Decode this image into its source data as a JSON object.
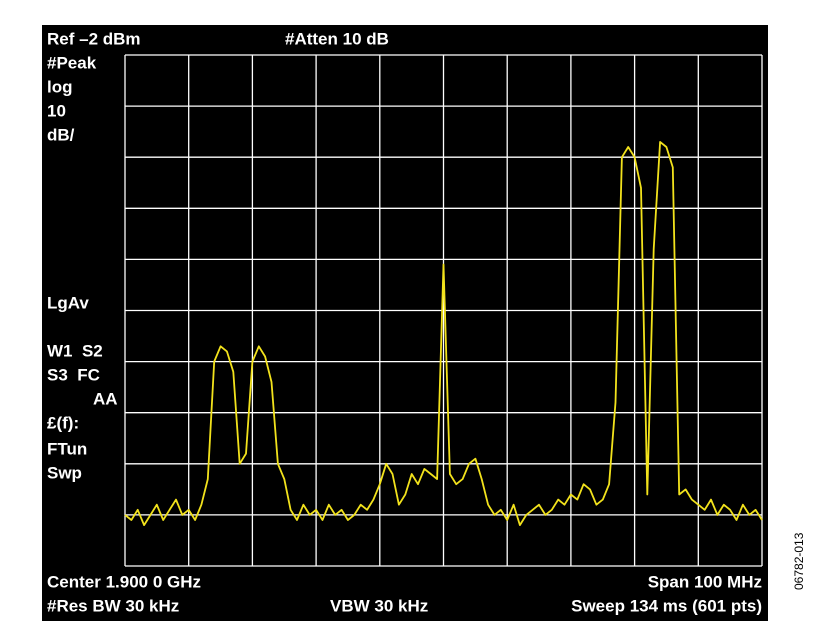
{
  "chart_data": {
    "type": "line",
    "annotations": [
      "Ref –2 dBm",
      "#Atten 10 dB",
      "#Peak",
      "log",
      "10",
      "dB/",
      "LgAv",
      "W1  S2",
      "S3  FC",
      "AA",
      "£(f):",
      "FTun",
      "Swp",
      "Center 1.900 0 GHz",
      "Span 100 MHz",
      "#Res BW 30 kHz",
      "VBW 30 kHz",
      "Sweep 134 ms (601 pts)"
    ],
    "figure_id": "06782-013",
    "x": [
      1850,
      1851,
      1852,
      1853,
      1854,
      1855,
      1856,
      1857,
      1858,
      1859,
      1860,
      1861,
      1862,
      1863,
      1864,
      1865,
      1866,
      1867,
      1868,
      1869,
      1870,
      1871,
      1872,
      1873,
      1874,
      1875,
      1876,
      1877,
      1878,
      1879,
      1880,
      1881,
      1882,
      1883,
      1884,
      1885,
      1886,
      1887,
      1888,
      1889,
      1890,
      1891,
      1892,
      1893,
      1894,
      1895,
      1896,
      1897,
      1898,
      1899,
      1900,
      1901,
      1902,
      1903,
      1904,
      1905,
      1906,
      1907,
      1908,
      1909,
      1910,
      1911,
      1912,
      1913,
      1914,
      1915,
      1916,
      1917,
      1918,
      1919,
      1920,
      1921,
      1922,
      1923,
      1924,
      1925,
      1926,
      1927,
      1928,
      1929,
      1930,
      1931,
      1932,
      1933,
      1934,
      1935,
      1936,
      1937,
      1938,
      1939,
      1940,
      1941,
      1942,
      1943,
      1944,
      1945,
      1946,
      1947,
      1948,
      1949,
      1950
    ],
    "values": [
      -92,
      -93,
      -91,
      -94,
      -92,
      -90,
      -93,
      -91,
      -89,
      -92,
      -91,
      -93,
      -90,
      -85,
      -62,
      -59,
      -60,
      -64,
      -82,
      -80,
      -62,
      -59,
      -61,
      -66,
      -82,
      -85,
      -91,
      -93,
      -90,
      -92,
      -91,
      -93,
      -90,
      -92,
      -91,
      -93,
      -92,
      -90,
      -91,
      -89,
      -86,
      -82,
      -84,
      -90,
      -88,
      -84,
      -86,
      -83,
      -84,
      -85,
      -43,
      -84,
      -86,
      -85,
      -82,
      -81,
      -85,
      -90,
      -92,
      -91,
      -93,
      -90,
      -94,
      -92,
      -91,
      -90,
      -92,
      -91,
      -89,
      -90,
      -88,
      -89,
      -86,
      -87,
      -90,
      -89,
      -86,
      -70,
      -22,
      -20,
      -22,
      -28,
      -88,
      -40,
      -19,
      -20,
      -24,
      -88,
      -87,
      -89,
      -90,
      -91,
      -89,
      -92,
      -90,
      -91,
      -93,
      -90,
      -92,
      -91,
      -93
    ],
    "color": "#f2e21c",
    "xlim": [
      1850,
      1950
    ],
    "xticks": [
      1850,
      1860,
      1870,
      1880,
      1890,
      1900,
      1910,
      1920,
      1930,
      1940,
      1950
    ],
    "ylim": [
      -102,
      -2
    ],
    "yticks": [
      -102,
      -92,
      -82,
      -72,
      -62,
      -52,
      -42,
      -32,
      -22,
      -12,
      -2
    ],
    "grid": true
  }
}
